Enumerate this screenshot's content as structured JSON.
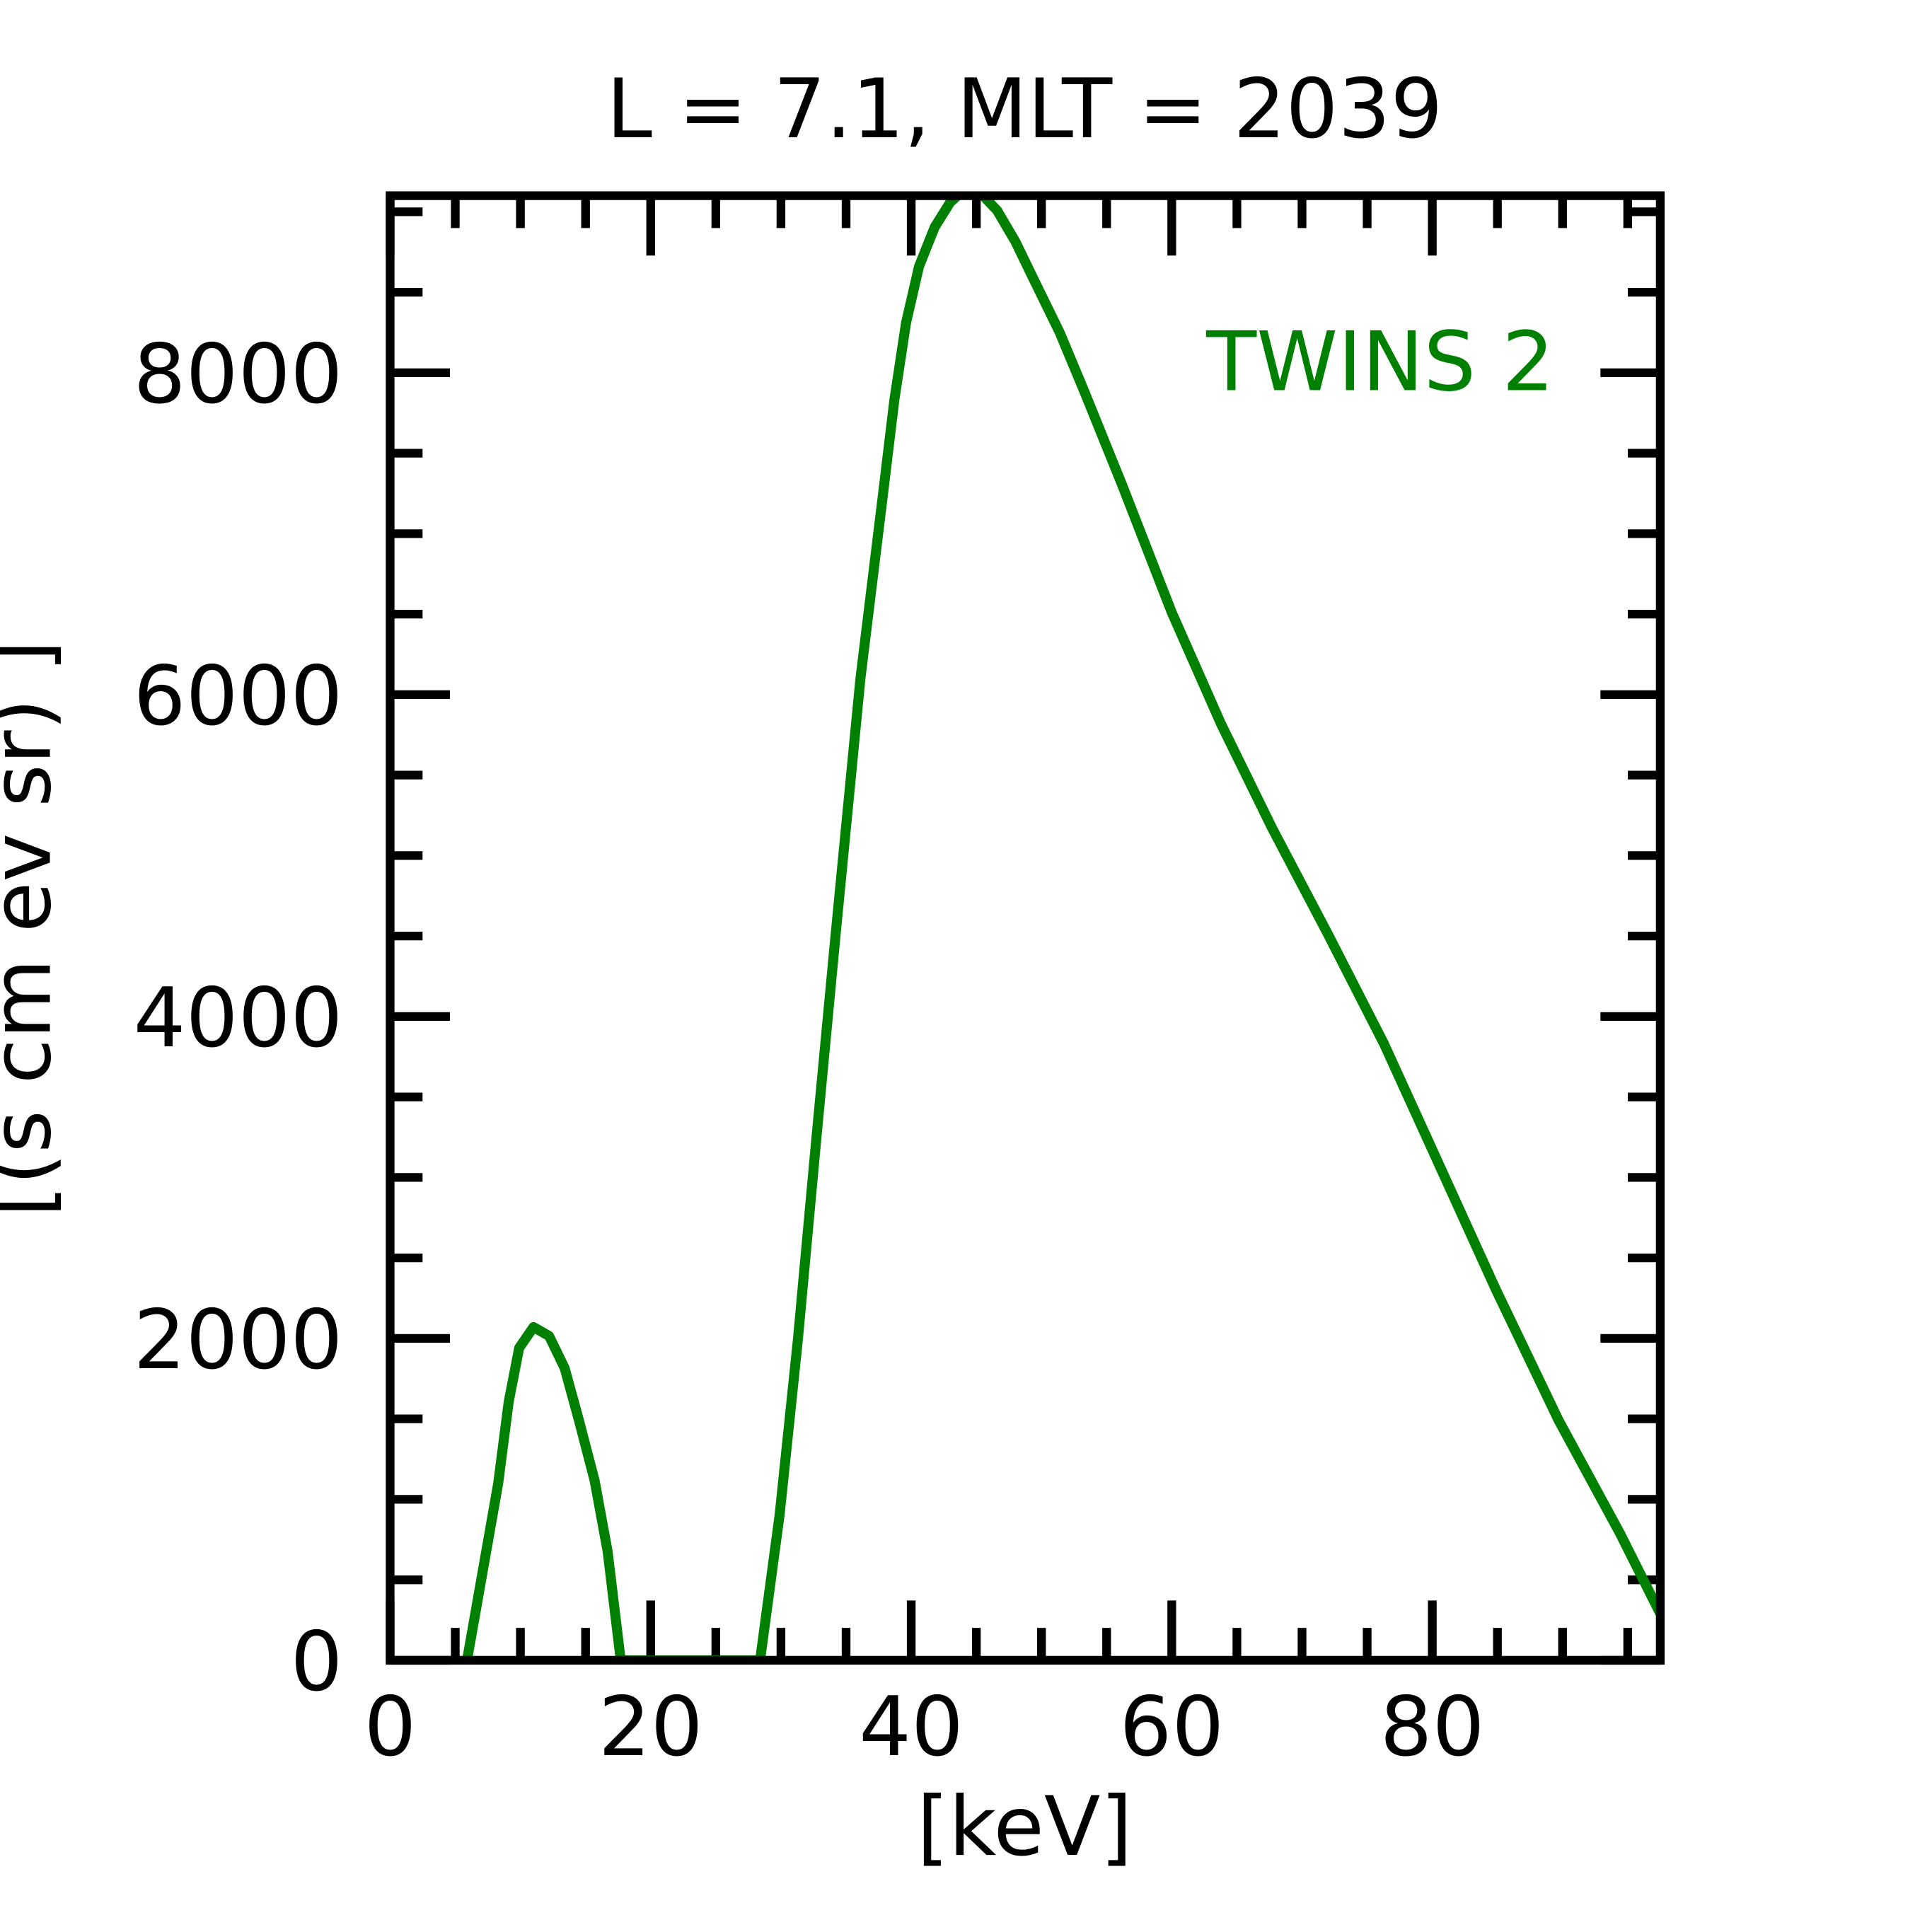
{
  "chart_data": {
    "type": "line",
    "title": "L =  7.1, MLT = 2039",
    "xlabel": "[keV]",
    "ylabel": "[(s cm ev sr)  ]",
    "xlim": [
      0,
      97.5
    ],
    "ylim": [
      0,
      9100
    ],
    "grid": false,
    "xticks": [
      0,
      20,
      40,
      60,
      80
    ],
    "xtick_labels": [
      "0",
      "20",
      "40",
      "60",
      "80"
    ],
    "xminor_step": 5,
    "yticks": [
      0,
      2000,
      4000,
      6000,
      8000
    ],
    "ytick_labels": [
      "0",
      "2000",
      "4000",
      "6000",
      "8000"
    ],
    "yminor_step": 500,
    "legend_placement": "top-right",
    "colors": {
      "series": "#008000",
      "axes": "#000000"
    },
    "series": [
      {
        "name": "TWINS 2",
        "x": [
          5.9,
          8.3,
          9.1,
          9.9,
          11.0,
          12.2,
          13.4,
          14.5,
          15.7,
          16.7,
          17.7,
          28.4,
          29.9,
          31.3,
          32.7,
          34.2,
          36.1,
          37.8,
          38.7,
          39.6,
          40.6,
          41.8,
          43.0,
          43.7,
          45.4,
          46.6,
          48.0,
          49.4,
          51.4,
          53.3,
          56.2,
          60.0,
          63.8,
          67.7,
          72.0,
          76.3,
          80.1,
          84.9,
          89.7,
          94.4,
          97.5
        ],
        "y": [
          0,
          1100,
          1605,
          1940,
          2070,
          2015,
          1815,
          1490,
          1115,
          675,
          0,
          0,
          905,
          1990,
          3230,
          4510,
          6100,
          7225,
          7830,
          8310,
          8660,
          8905,
          9060,
          9110,
          9110,
          9008,
          8814,
          8580,
          8250,
          7880,
          7300,
          6510,
          5815,
          5170,
          4510,
          3830,
          3155,
          2300,
          1490,
          790,
          290
        ]
      }
    ]
  }
}
